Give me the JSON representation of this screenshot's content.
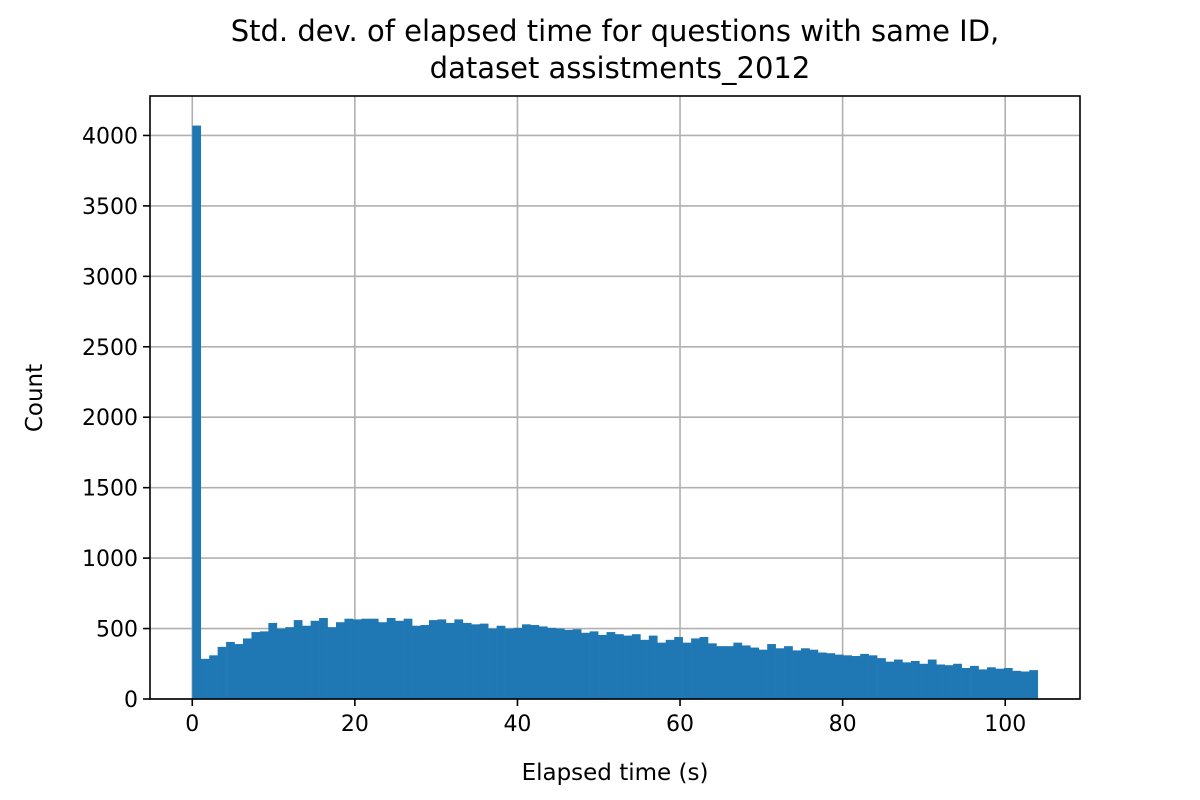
{
  "chart_data": {
    "type": "bar",
    "title": "Std. dev. of elapsed time for questions with same ID,",
    "subtitle": "dataset assistments_2012",
    "xlabel": "Elapsed time (s)",
    "ylabel": "Count",
    "xlim": [
      -5.2,
      109.2
    ],
    "ylim": [
      0,
      4280
    ],
    "xticks": [
      0,
      20,
      40,
      60,
      80,
      100
    ],
    "yticks": [
      0,
      500,
      1000,
      1500,
      2000,
      2500,
      3000,
      3500,
      4000
    ],
    "grid": true,
    "bar_color": "#1f77b4",
    "bin_start": 0,
    "bin_width": 1.04,
    "values": [
      4070,
      285,
      310,
      370,
      405,
      390,
      430,
      475,
      480,
      540,
      500,
      510,
      560,
      520,
      555,
      575,
      510,
      545,
      570,
      565,
      570,
      570,
      545,
      575,
      555,
      570,
      520,
      525,
      560,
      565,
      540,
      565,
      540,
      530,
      535,
      500,
      520,
      500,
      505,
      530,
      525,
      515,
      505,
      500,
      490,
      495,
      470,
      480,
      455,
      475,
      460,
      450,
      460,
      420,
      450,
      400,
      420,
      440,
      400,
      430,
      440,
      395,
      375,
      375,
      400,
      380,
      365,
      350,
      390,
      360,
      375,
      345,
      360,
      350,
      330,
      325,
      315,
      310,
      305,
      320,
      310,
      290,
      265,
      280,
      260,
      270,
      250,
      280,
      245,
      240,
      250,
      220,
      235,
      210,
      225,
      215,
      220,
      200,
      195,
      205
    ]
  }
}
